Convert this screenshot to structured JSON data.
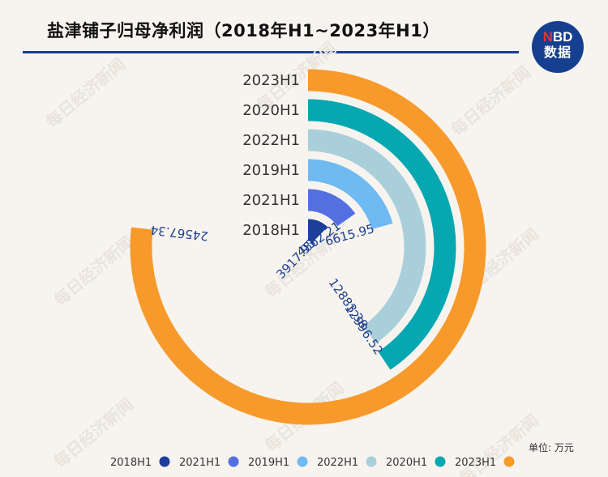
{
  "title": "盐津铺子归母净利润（2018年H1~2023年H1）",
  "logo": {
    "line1_n": "N",
    "line1_rest": "BD",
    "line2": "数据"
  },
  "unit": "单位: 万元",
  "watermark": "每日经济新闻",
  "colors": {
    "2018H1": "#1c3f9a",
    "2021H1": "#5470e0",
    "2019H1": "#6fbaf2",
    "2022H1": "#a9cfdb",
    "2020H1": "#05a7b1",
    "2023H1": "#f79a2b",
    "title_rule": "#1a3e91"
  },
  "chart_data": {
    "type": "radial-bar",
    "title": "盐津铺子归母净利润（2018年H1~2023年H1）",
    "unit": "万元",
    "max_angle_value": 32000,
    "categories": [
      "2018H1",
      "2021H1",
      "2019H1",
      "2022H1",
      "2020H1",
      "2023H1"
    ],
    "values": [
      3917.93,
      4862.21,
      6615.95,
      12883.38,
      12996.52,
      24567.34
    ],
    "value_labels": [
      "3917.93",
      "4862.21",
      "6615.95",
      "12883.38",
      "12996.52",
      "24567.34"
    ],
    "legend": {
      "position": "bottom",
      "entries": [
        "2018H1",
        "2021H1",
        "2019H1",
        "2022H1",
        "2020H1",
        "2023H1"
      ]
    }
  }
}
